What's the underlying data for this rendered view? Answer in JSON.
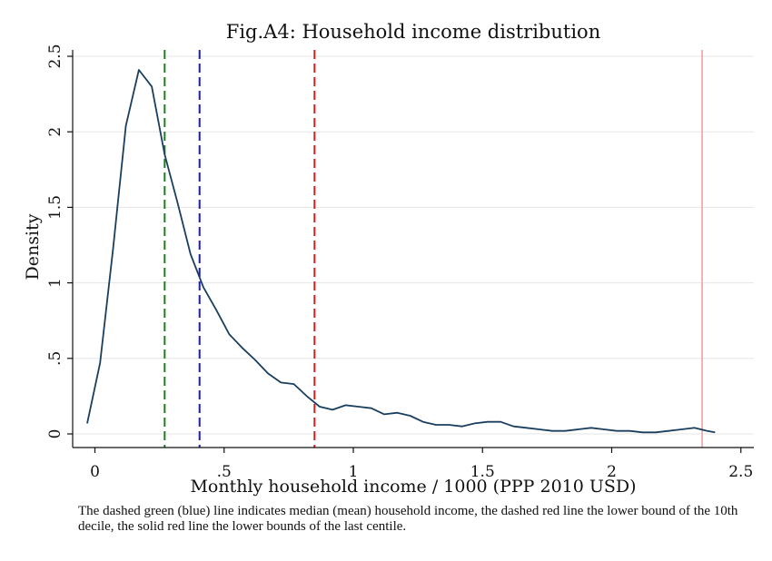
{
  "chart_data": {
    "type": "line",
    "title": "Fig.A4: Household income distribution",
    "xlabel": "Monthly household income / 1000 (PPP 2010 USD)",
    "ylabel": "Density",
    "xlim": [
      -0.08,
      2.52
    ],
    "ylim": [
      0,
      2.55
    ],
    "x_ticks": [
      0,
      0.5,
      1,
      1.5,
      2,
      2.5
    ],
    "x_tick_labels": [
      "0",
      ".5",
      "1",
      "1.5",
      "2",
      "2.5"
    ],
    "y_ticks": [
      0,
      0.5,
      1,
      1.5,
      2,
      2.5
    ],
    "y_tick_labels": [
      "0",
      ".5",
      "1",
      "1.5",
      "2",
      "2.5"
    ],
    "grid": "horizontal",
    "series": [
      {
        "color": "#1a3f5e",
        "x": [
          -0.03,
          0.02,
          0.07,
          0.12,
          0.17,
          0.22,
          0.27,
          0.32,
          0.37,
          0.42,
          0.47,
          0.52,
          0.57,
          0.62,
          0.67,
          0.72,
          0.77,
          0.82,
          0.87,
          0.92,
          0.97,
          1.02,
          1.07,
          1.12,
          1.17,
          1.22,
          1.27,
          1.32,
          1.37,
          1.42,
          1.47,
          1.52,
          1.57,
          1.62,
          1.67,
          1.72,
          1.77,
          1.82,
          1.87,
          1.92,
          1.97,
          2.02,
          2.07,
          2.12,
          2.17,
          2.22,
          2.27,
          2.32,
          2.37,
          2.4
        ],
        "y": [
          0.07,
          0.47,
          1.22,
          2.04,
          2.41,
          2.3,
          1.85,
          1.53,
          1.19,
          0.97,
          0.82,
          0.66,
          0.57,
          0.49,
          0.4,
          0.34,
          0.33,
          0.25,
          0.18,
          0.16,
          0.19,
          0.18,
          0.17,
          0.13,
          0.14,
          0.12,
          0.08,
          0.06,
          0.06,
          0.05,
          0.07,
          0.08,
          0.08,
          0.05,
          0.04,
          0.03,
          0.02,
          0.02,
          0.03,
          0.04,
          0.03,
          0.02,
          0.02,
          0.01,
          0.01,
          0.02,
          0.03,
          0.04,
          0.02,
          0.01
        ]
      }
    ],
    "reference_lines": [
      {
        "x": 0.27,
        "color": "#1f7f1f",
        "style": "dashed"
      },
      {
        "x": 0.405,
        "color": "#1a1acc",
        "style": "dashed"
      },
      {
        "x": 0.85,
        "color": "#cc2222",
        "style": "dashed"
      },
      {
        "x": 2.35,
        "color": "#f0a0a0",
        "style": "solid"
      }
    ]
  },
  "note": "The dashed green (blue) line indicates median (mean) household income, the dashed red line the lower bound of the 10th decile, the solid red line the lower bounds of the last centile."
}
